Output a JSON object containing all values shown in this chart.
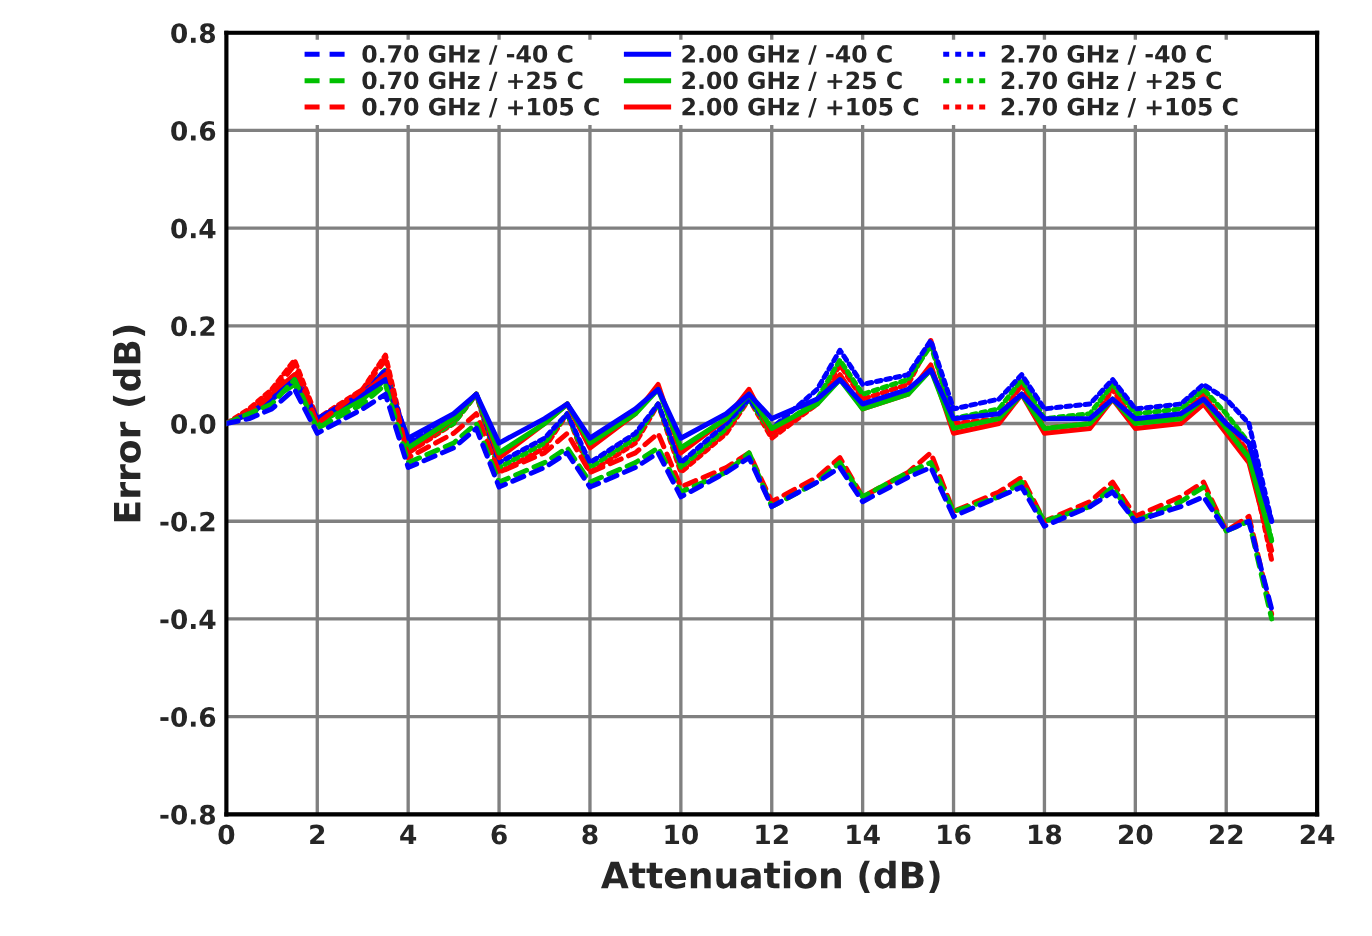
{
  "chart_data": {
    "type": "line",
    "xlabel": "Attenuation (dB)",
    "ylabel": "Error (dB)",
    "x": [
      0,
      0.5,
      1,
      1.5,
      2,
      3,
      3.5,
      4,
      5,
      5.5,
      6,
      7,
      7.5,
      8,
      9,
      9.5,
      10,
      11,
      11.5,
      12,
      13,
      13.5,
      14,
      15,
      15.5,
      16,
      17,
      17.5,
      18,
      19,
      19.5,
      20,
      21,
      21.5,
      22,
      22.5,
      23
    ],
    "xlim": [
      0,
      24
    ],
    "xticks": [
      0,
      2,
      4,
      6,
      8,
      10,
      12,
      14,
      16,
      18,
      20,
      22,
      24
    ],
    "ylim": [
      -0.8,
      0.8
    ],
    "yticks": [
      {
        "value": -0.8,
        "label": "-0.8"
      },
      {
        "value": -0.6,
        "label": "-0.6"
      },
      {
        "value": -0.4,
        "label": "-0.4"
      },
      {
        "value": -0.2,
        "label": "-0.2"
      },
      {
        "value": 0,
        "label": "0.0"
      },
      {
        "value": 0.2,
        "label": "0.2"
      },
      {
        "value": 0.4,
        "label": "0.4"
      },
      {
        "value": 0.6,
        "label": "0.6"
      },
      {
        "value": 0.8,
        "label": "0.8"
      }
    ],
    "grid": true,
    "legend": "top",
    "series": [
      {
        "name": "0.70 GHz / -40 C",
        "color": "#0000ff",
        "line_style": "dashed",
        "values": [
          0,
          0.01,
          0.03,
          0.07,
          -0.02,
          0.03,
          0.06,
          -0.09,
          -0.05,
          -0.01,
          -0.13,
          -0.09,
          -0.06,
          -0.13,
          -0.09,
          -0.06,
          -0.15,
          -0.1,
          -0.07,
          -0.17,
          -0.12,
          -0.09,
          -0.16,
          -0.11,
          -0.09,
          -0.19,
          -0.15,
          -0.13,
          -0.21,
          -0.17,
          -0.14,
          -0.2,
          -0.17,
          -0.15,
          -0.22,
          -0.2,
          -0.38
        ]
      },
      {
        "name": "0.70 GHz / +25 C",
        "color": "#00c000",
        "line_style": "dashed",
        "values": [
          0,
          0.02,
          0.04,
          0.09,
          -0.01,
          0.04,
          0.08,
          -0.08,
          -0.04,
          0.0,
          -0.12,
          -0.08,
          -0.05,
          -0.12,
          -0.08,
          -0.05,
          -0.14,
          -0.1,
          -0.06,
          -0.17,
          -0.12,
          -0.08,
          -0.15,
          -0.1,
          -0.08,
          -0.18,
          -0.15,
          -0.12,
          -0.2,
          -0.17,
          -0.13,
          -0.2,
          -0.16,
          -0.13,
          -0.22,
          -0.2,
          -0.4
        ]
      },
      {
        "name": "0.70 GHz / +105 C",
        "color": "#ff0000",
        "line_style": "dashed",
        "values": [
          0,
          0.02,
          0.06,
          0.12,
          0.0,
          0.07,
          0.13,
          -0.07,
          -0.02,
          0.02,
          -0.1,
          -0.06,
          -0.02,
          -0.1,
          -0.06,
          -0.02,
          -0.13,
          -0.09,
          -0.06,
          -0.16,
          -0.11,
          -0.07,
          -0.15,
          -0.1,
          -0.06,
          -0.18,
          -0.14,
          -0.11,
          -0.2,
          -0.16,
          -0.12,
          -0.19,
          -0.15,
          -0.12,
          -0.22,
          -0.19,
          -0.39
        ]
      },
      {
        "name": "2.00 GHz / -40 C",
        "color": "#0000ff",
        "line_style": "solid",
        "values": [
          0,
          0.02,
          0.05,
          0.09,
          0.01,
          0.06,
          0.09,
          -0.03,
          0.02,
          0.06,
          -0.04,
          0.01,
          0.04,
          -0.03,
          0.03,
          0.07,
          -0.03,
          0.02,
          0.06,
          0.01,
          0.05,
          0.09,
          0.04,
          0.07,
          0.11,
          0.01,
          0.02,
          0.06,
          0.01,
          0.01,
          0.05,
          0.01,
          0.02,
          0.05,
          0.0,
          -0.04,
          -0.2
        ]
      },
      {
        "name": "2.00 GHz / +25 C",
        "color": "#00c000",
        "line_style": "solid",
        "values": [
          0,
          0.02,
          0.05,
          0.08,
          0.0,
          0.05,
          0.09,
          -0.05,
          0.01,
          0.06,
          -0.06,
          0.0,
          0.04,
          -0.04,
          0.02,
          0.07,
          -0.05,
          0.01,
          0.06,
          -0.01,
          0.04,
          0.09,
          0.03,
          0.06,
          0.11,
          -0.01,
          0.01,
          0.06,
          -0.01,
          0.0,
          0.05,
          0.0,
          0.01,
          0.05,
          -0.01,
          -0.07,
          -0.24
        ]
      },
      {
        "name": "2.00 GHz / +105 C",
        "color": "#ff0000",
        "line_style": "solid",
        "values": [
          0,
          0.02,
          0.06,
          0.1,
          0.0,
          0.06,
          0.1,
          -0.06,
          0.01,
          0.06,
          -0.07,
          0.0,
          0.04,
          -0.05,
          0.02,
          0.08,
          -0.06,
          0.01,
          0.07,
          -0.02,
          0.04,
          0.1,
          0.03,
          0.06,
          0.12,
          -0.02,
          0.0,
          0.06,
          -0.02,
          -0.01,
          0.05,
          -0.01,
          0.0,
          0.04,
          -0.02,
          -0.08,
          -0.26
        ]
      },
      {
        "name": "2.70 GHz / -40 C",
        "color": "#0000ff",
        "line_style": "dotted",
        "values": [
          0,
          0.02,
          0.05,
          0.1,
          0.01,
          0.06,
          0.11,
          -0.04,
          0.01,
          0.06,
          -0.08,
          -0.03,
          0.02,
          -0.08,
          -0.02,
          0.04,
          -0.08,
          0.0,
          0.05,
          -0.01,
          0.07,
          0.15,
          0.08,
          0.1,
          0.17,
          0.03,
          0.05,
          0.1,
          0.03,
          0.04,
          0.09,
          0.03,
          0.04,
          0.08,
          0.05,
          0.0,
          -0.2
        ]
      },
      {
        "name": "2.70 GHz / +25 C",
        "color": "#00c000",
        "line_style": "dotted",
        "values": [
          0,
          0.02,
          0.05,
          0.1,
          0.0,
          0.06,
          0.11,
          -0.05,
          0.0,
          0.06,
          -0.09,
          -0.04,
          0.02,
          -0.09,
          -0.03,
          0.04,
          -0.09,
          -0.01,
          0.05,
          -0.02,
          0.05,
          0.13,
          0.06,
          0.09,
          0.16,
          0.01,
          0.03,
          0.09,
          0.01,
          0.02,
          0.08,
          0.02,
          0.03,
          0.07,
          0.02,
          -0.04,
          -0.24
        ]
      },
      {
        "name": "2.70 GHz / +105 C",
        "color": "#ff0000",
        "line_style": "dotted",
        "values": [
          0,
          0.03,
          0.07,
          0.13,
          0.01,
          0.07,
          0.14,
          -0.06,
          0.0,
          0.06,
          -0.1,
          -0.05,
          0.02,
          -0.1,
          -0.04,
          0.04,
          -0.1,
          -0.02,
          0.05,
          -0.03,
          0.04,
          0.12,
          0.05,
          0.08,
          0.17,
          0.0,
          0.01,
          0.08,
          -0.01,
          0.0,
          0.07,
          0.0,
          0.02,
          0.06,
          0.0,
          -0.06,
          -0.28
        ]
      }
    ]
  }
}
